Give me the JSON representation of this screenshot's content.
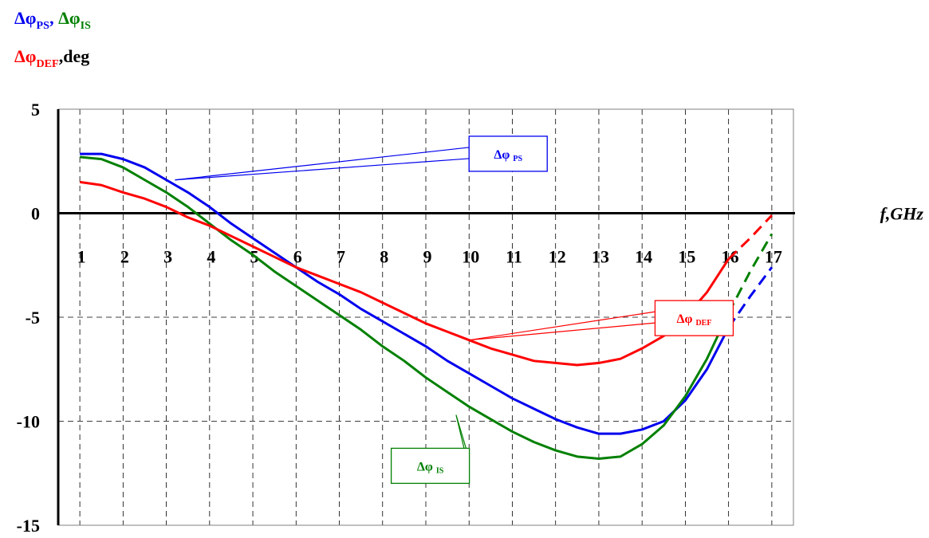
{
  "chart_data": {
    "type": "line",
    "title_lines": [
      [
        {
          "text": "Δφ",
          "sub": "PS",
          "color": "#0000ee"
        },
        {
          "text": ", ",
          "sub": "",
          "color": "#0000ee"
        },
        {
          "text": "Δφ",
          "sub": "IS",
          "color": "#008000"
        }
      ],
      [
        {
          "text": "Δφ",
          "sub": "DEF",
          "color": "#ff0000"
        },
        {
          "text": ",deg",
          "sub": "",
          "color": "#000000"
        }
      ]
    ],
    "xlabel": "f,GHz",
    "x_ticks": [
      1,
      2,
      3,
      4,
      5,
      6,
      7,
      8,
      9,
      10,
      11,
      12,
      13,
      14,
      15,
      16,
      17
    ],
    "y_ticks": [
      5,
      0,
      -5,
      -10,
      -15
    ],
    "xlim": [
      0.5,
      17.5
    ],
    "ylim": [
      -15,
      5
    ],
    "grid": true,
    "series": [
      {
        "name": "Δφ PS",
        "label_main": "Δφ",
        "label_sub": "PS",
        "color": "#0000ee",
        "x": [
          1,
          1.5,
          2,
          2.5,
          3,
          3.5,
          4,
          4.5,
          5,
          5.5,
          6,
          6.5,
          7,
          7.5,
          8,
          8.5,
          9,
          9.5,
          10,
          10.5,
          11,
          11.5,
          12,
          12.5,
          13,
          13.5,
          14,
          14.5,
          15,
          15.5,
          16
        ],
        "y": [
          2.85,
          2.85,
          2.6,
          2.2,
          1.6,
          1.0,
          0.3,
          -0.5,
          -1.2,
          -1.9,
          -2.6,
          -3.3,
          -3.9,
          -4.6,
          -5.2,
          -5.8,
          -6.4,
          -7.1,
          -7.7,
          -8.3,
          -8.9,
          -9.4,
          -9.9,
          -10.3,
          -10.6,
          -10.6,
          -10.4,
          -10.0,
          -9.0,
          -7.5,
          -5.5
        ],
        "dashed_x": [
          16,
          16.5,
          17
        ],
        "dashed_y": [
          -5.5,
          -4.0,
          -2.6
        ],
        "callout": {
          "point": [
            3.2,
            1.6
          ],
          "box": [
            10,
            3.7
          ]
        }
      },
      {
        "name": "Δφ IS",
        "label_main": "Δφ",
        "label_sub": "IS",
        "color": "#008000",
        "x": [
          1,
          1.5,
          2,
          2.5,
          3,
          3.5,
          4,
          4.5,
          5,
          5.5,
          6,
          6.5,
          7,
          7.5,
          8,
          8.5,
          9,
          9.5,
          10,
          10.5,
          11,
          11.5,
          12,
          12.5,
          13,
          13.5,
          14,
          14.5,
          15,
          15.5,
          16
        ],
        "y": [
          2.7,
          2.6,
          2.2,
          1.6,
          1.0,
          0.3,
          -0.5,
          -1.3,
          -2.0,
          -2.8,
          -3.5,
          -4.2,
          -4.9,
          -5.6,
          -6.4,
          -7.1,
          -7.9,
          -8.6,
          -9.3,
          -9.9,
          -10.5,
          -11.0,
          -11.4,
          -11.7,
          -11.8,
          -11.7,
          -11.1,
          -10.2,
          -8.8,
          -7.0,
          -4.8
        ],
        "dashed_x": [
          16,
          16.5,
          17
        ],
        "dashed_y": [
          -4.8,
          -2.8,
          -1.0
        ],
        "callout": {
          "point": [
            9.7,
            -9.7
          ],
          "box": [
            8.2,
            -11.3
          ]
        }
      },
      {
        "name": "Δφ DEF",
        "label_main": "Δφ",
        "label_sub": "DEF",
        "color": "#ff0000",
        "x": [
          1,
          1.5,
          2,
          2.5,
          3,
          3.5,
          4,
          4.5,
          5,
          5.5,
          6,
          6.5,
          7,
          7.5,
          8,
          8.5,
          9,
          9.5,
          10,
          10.5,
          11,
          11.5,
          12,
          12.5,
          13,
          13.5,
          14,
          14.5,
          15,
          15.5,
          16
        ],
        "y": [
          1.5,
          1.35,
          1.0,
          0.7,
          0.3,
          -0.2,
          -0.6,
          -1.1,
          -1.6,
          -2.1,
          -2.6,
          -3.0,
          -3.4,
          -3.8,
          -4.3,
          -4.8,
          -5.3,
          -5.7,
          -6.1,
          -6.5,
          -6.8,
          -7.1,
          -7.2,
          -7.3,
          -7.2,
          -7.0,
          -6.5,
          -5.9,
          -5.0,
          -3.8,
          -2.2
        ],
        "dashed_x": [
          16,
          16.5,
          17
        ],
        "dashed_y": [
          -2.2,
          -1.2,
          -0.1
        ],
        "callout": {
          "point": [
            10,
            -6.1
          ],
          "box": [
            14.3,
            -4.2
          ]
        }
      }
    ]
  }
}
